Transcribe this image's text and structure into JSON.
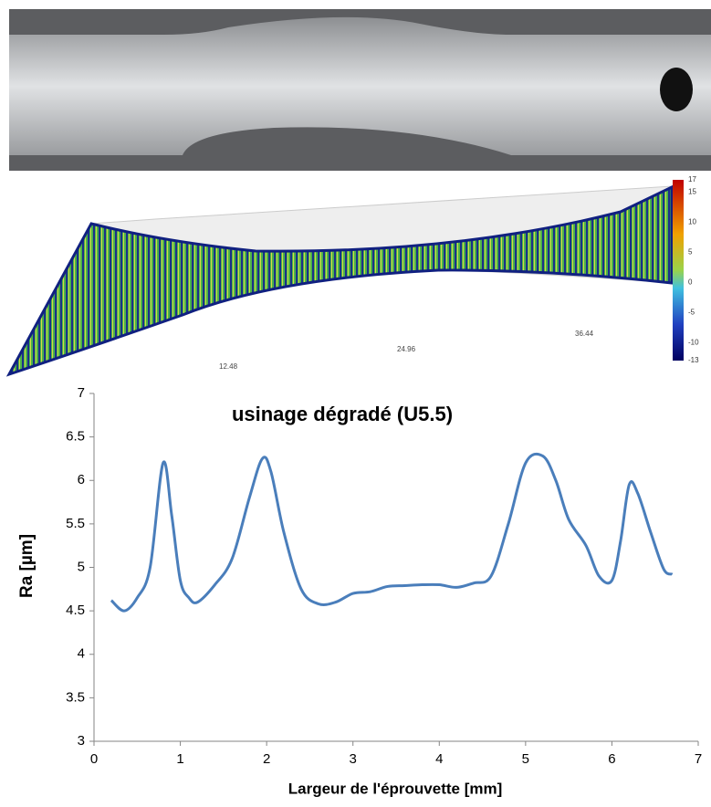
{
  "render": {
    "colorbar_ticks": [
      17,
      15,
      10,
      5,
      0,
      -5,
      -10,
      -13
    ],
    "axis_labels": [
      "12.48",
      "24.96",
      "36.44"
    ]
  },
  "chart_data": {
    "type": "line",
    "title": "usinage dégradé (U5.5)",
    "x_label": "Largeur de l'éprouvette [mm]",
    "y_label": "Ra [µm]",
    "xlim": [
      0,
      7
    ],
    "xticks": [
      0,
      1,
      2,
      3,
      4,
      5,
      6,
      7
    ],
    "ylim": [
      3,
      7
    ],
    "yticks": [
      3,
      3.5,
      4,
      4.5,
      5,
      5.5,
      6,
      6.5,
      7
    ],
    "grid": false,
    "series": [
      {
        "name": "Ra",
        "color": "#4a7ebb",
        "x": [
          0.2,
          0.35,
          0.5,
          0.65,
          0.8,
          0.9,
          1.0,
          1.1,
          1.2,
          1.4,
          1.6,
          1.8,
          1.95,
          2.05,
          2.2,
          2.4,
          2.6,
          2.8,
          3.0,
          3.2,
          3.4,
          3.6,
          3.8,
          4.0,
          4.2,
          4.4,
          4.6,
          4.8,
          5.0,
          5.2,
          5.35,
          5.5,
          5.7,
          5.85,
          6.0,
          6.1,
          6.2,
          6.3,
          6.45,
          6.6,
          6.7
        ],
        "values": [
          4.62,
          4.5,
          4.65,
          5.0,
          6.2,
          5.6,
          4.85,
          4.65,
          4.6,
          4.8,
          5.1,
          5.8,
          6.25,
          6.1,
          5.4,
          4.75,
          4.58,
          4.6,
          4.7,
          4.72,
          4.78,
          4.79,
          4.8,
          4.8,
          4.77,
          4.82,
          4.9,
          5.5,
          6.2,
          6.28,
          6.0,
          5.55,
          5.25,
          4.9,
          4.85,
          5.3,
          5.95,
          5.85,
          5.4,
          4.98,
          4.92
        ]
      }
    ]
  }
}
